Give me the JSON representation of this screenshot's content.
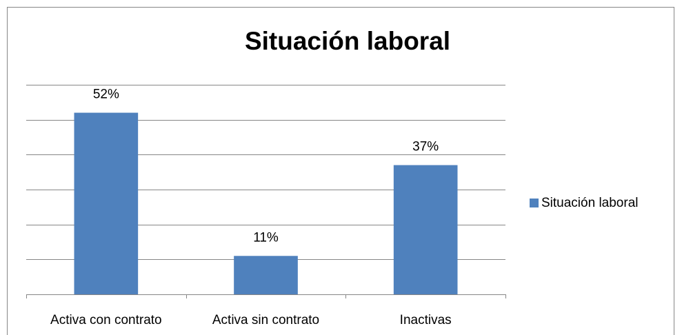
{
  "chart_data": {
    "type": "bar",
    "title": "Situación laboral",
    "categories": [
      "Activa con contrato",
      "Activa sin contrato",
      "Inactivas"
    ],
    "series": [
      {
        "name": "Situación laboral",
        "color": "#4f81bd",
        "values": [
          52,
          11,
          37
        ],
        "value_labels": [
          "52%",
          "11%",
          "37%"
        ]
      }
    ],
    "ylim": [
      0,
      60
    ],
    "yticks": [
      0,
      10,
      20,
      30,
      40,
      50,
      60
    ],
    "grid": true,
    "legend": "right"
  }
}
